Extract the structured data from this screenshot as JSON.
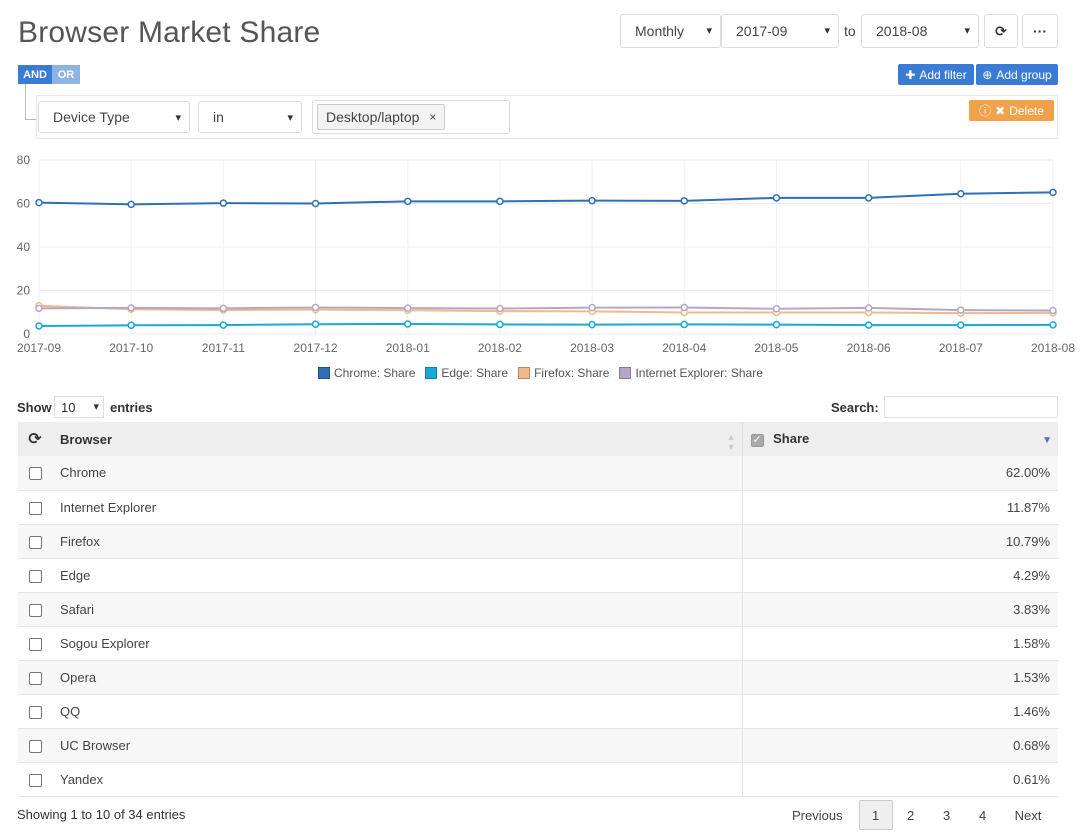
{
  "header": {
    "title": "Browser Market Share",
    "period_value": "Monthly",
    "from_value": "2017-09",
    "to_label": "to",
    "to_value": "2018-08",
    "refresh_icon": "refresh-icon",
    "more_icon": "ellipsis-icon"
  },
  "filter": {
    "and_label": "AND",
    "or_label": "OR",
    "add_filter_label": "Add filter",
    "add_group_label": "Add group",
    "delete_label": "Delete",
    "field_value": "Device Type",
    "operator_value": "in",
    "tag_value": "Desktop/laptop",
    "tag_remove": "×"
  },
  "chart_data": {
    "type": "line",
    "x": [
      "2017-09",
      "2017-10",
      "2017-11",
      "2017-12",
      "2018-01",
      "2018-02",
      "2018-03",
      "2018-04",
      "2018-05",
      "2018-06",
      "2018-07",
      "2018-08"
    ],
    "x_tick_labels": [
      "2017-09",
      "2017-10",
      "2017-11",
      "2017-12",
      "2018-01",
      "2018-02",
      "2018-03",
      "2018-04",
      "2018-05",
      "2018-06",
      "2018-07",
      "2018-08"
    ],
    "ylim": [
      0,
      80
    ],
    "yticks": [
      0,
      20,
      40,
      60,
      80
    ],
    "grid": true,
    "legend_position": "bottom",
    "series": [
      {
        "name": "Chrome: Share",
        "color": "#2f6fb5",
        "values": [
          60.4,
          59.6,
          60.2,
          60.0,
          61.0,
          61.0,
          61.3,
          61.2,
          62.6,
          62.6,
          64.5,
          65.1
        ]
      },
      {
        "name": "Edge: Share",
        "color": "#17a9d8",
        "values": [
          3.7,
          4.0,
          4.1,
          4.5,
          4.6,
          4.4,
          4.3,
          4.4,
          4.3,
          4.1,
          4.1,
          4.2
        ]
      },
      {
        "name": "Firefox: Share",
        "color": "#f2b98a",
        "values": [
          13.0,
          11.4,
          11.0,
          11.2,
          10.9,
          10.5,
          10.4,
          9.9,
          9.9,
          9.9,
          9.6,
          9.7
        ]
      },
      {
        "name": "Internet Explorer: Share",
        "color": "#b6a6c6",
        "values": [
          11.8,
          12.0,
          11.8,
          12.2,
          11.9,
          11.7,
          12.1,
          12.2,
          11.6,
          12.0,
          11.0,
          10.8
        ]
      }
    ]
  },
  "table_controls": {
    "show_label": "Show",
    "length_value": "10",
    "entries_label": "entries",
    "search_label": "Search:",
    "search_value": ""
  },
  "table": {
    "columns": [
      "Browser",
      "Share"
    ],
    "rows": [
      {
        "browser": "Chrome",
        "share": "62.00%"
      },
      {
        "browser": "Internet Explorer",
        "share": "11.87%"
      },
      {
        "browser": "Firefox",
        "share": "10.79%"
      },
      {
        "browser": "Edge",
        "share": "4.29%"
      },
      {
        "browser": "Safari",
        "share": "3.83%"
      },
      {
        "browser": "Sogou Explorer",
        "share": "1.58%"
      },
      {
        "browser": "Opera",
        "share": "1.53%"
      },
      {
        "browser": "QQ",
        "share": "1.46%"
      },
      {
        "browser": "UC Browser",
        "share": "0.68%"
      },
      {
        "browser": "Yandex",
        "share": "0.61%"
      }
    ]
  },
  "footer": {
    "info": "Showing 1 to 10 of 34 entries",
    "previous_label": "Previous",
    "pages": [
      "1",
      "2",
      "3",
      "4"
    ],
    "current_page": "1",
    "next_label": "Next"
  }
}
